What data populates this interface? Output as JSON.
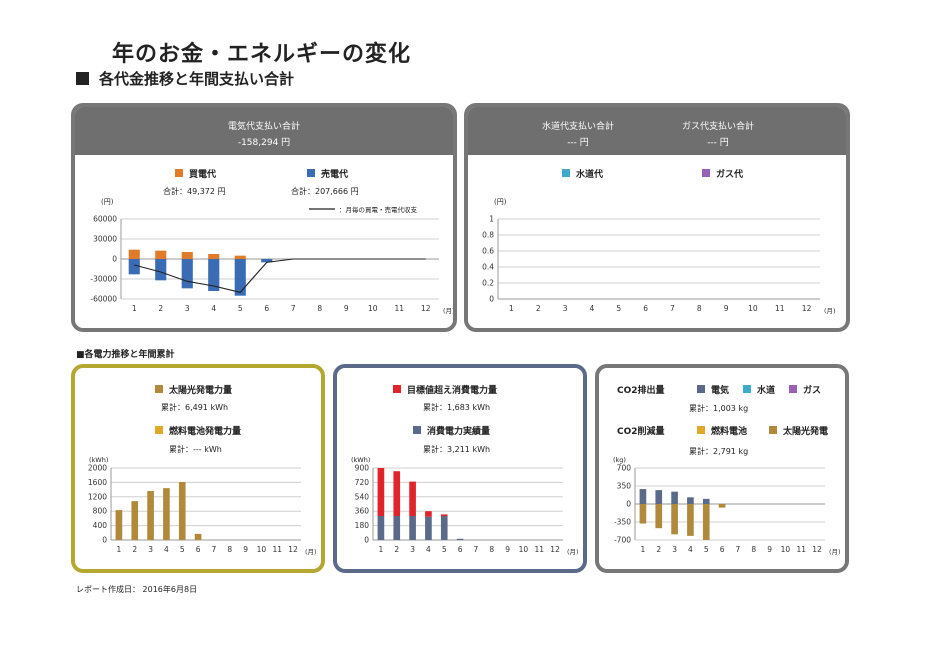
{
  "page": {
    "title": "年のお金・エネルギーの変化",
    "subtitle": "各代金推移と年間支払い合計",
    "section2": "■各電力推移と年間累計",
    "report": "レポート作成日： 2016年6月8日"
  },
  "colors": {
    "buy": "#e07b2a",
    "sell": "#3a6bb5",
    "water": "#3fa9c9",
    "gas": "#9b5fb5",
    "solar": "#b08a3a",
    "fuel": "#e0a92a",
    "target": "#e0242a",
    "actual": "#5c6a8a",
    "frame_gray": "#777777",
    "frame_gold": "#b5a830",
    "frame_blue": "#5c6a8a"
  },
  "electric_panel": {
    "header_label": "電気代支払い合計",
    "header_value": "-158,294 円",
    "legend_buy": "買電代",
    "legend_sell": "売電代",
    "total_buy": "合計：49,372 円",
    "total_sell": "合計：207,666 円",
    "line_legend": "：月毎の買電・売電代収支",
    "y_unit": "(円)",
    "x_unit": "(月)"
  },
  "water_gas_panel": {
    "water_header": "水道代支払い合計",
    "water_value": "--- 円",
    "gas_header": "ガス代支払い合計",
    "gas_value": "--- 円",
    "legend_water": "水道代",
    "legend_gas": "ガス代",
    "y_unit": "(円)",
    "x_unit": "(月)"
  },
  "generation_panel": {
    "legend_solar": "太陽光発電力量",
    "total_solar": "累計：6,491 kWh",
    "legend_fuel": "燃料電池発電力量",
    "total_fuel": "累計：--- kWh",
    "y_unit": "(kWh)",
    "x_unit": "(月)"
  },
  "consumption_panel": {
    "legend_target": "目標値超え消費電力量",
    "total_target": "累計：1,683 kWh",
    "legend_actual": "消費電力実績量",
    "total_actual": "累計：3,211 kWh",
    "y_unit": "(kWh)",
    "x_unit": "(月)"
  },
  "co2_panel": {
    "emission_label": "CO2排出量",
    "legend_elec": "電気",
    "legend_water": "水道",
    "legend_gas": "ガス",
    "total_emission": "累計：1,003 kg",
    "reduction_label": "CO2削減量",
    "legend_fuel": "燃料電池",
    "legend_solar": "太陽光発電",
    "total_reduction": "累計：2,791 kg",
    "y_unit": "(kg)",
    "x_unit": "(月)"
  },
  "chart_data": [
    {
      "id": "electric",
      "type": "bar",
      "categories": [
        "1",
        "2",
        "3",
        "4",
        "5",
        "6",
        "7",
        "8",
        "9",
        "10",
        "11",
        "12"
      ],
      "yticks": [
        "60000",
        "30000",
        "0",
        "-30000",
        "-60000"
      ],
      "ylim": [
        -60000,
        60000
      ],
      "series": [
        {
          "name": "買電代",
          "values": [
            14000,
            12500,
            10500,
            7500,
            5000,
            0,
            0,
            0,
            0,
            0,
            0,
            0
          ]
        },
        {
          "name": "売電代",
          "values": [
            -23000,
            -32000,
            -44000,
            -48000,
            -55000,
            -5000,
            0,
            0,
            0,
            0,
            0,
            0
          ]
        },
        {
          "name": "：月毎の買電・売電代収支",
          "values": [
            -9000,
            -19500,
            -33500,
            -40500,
            -50000,
            -5000,
            0,
            0,
            0,
            0,
            0,
            0
          ]
        }
      ],
      "grid": true
    },
    {
      "id": "water_gas",
      "type": "bar",
      "categories": [
        "1",
        "2",
        "3",
        "4",
        "5",
        "6",
        "7",
        "8",
        "9",
        "10",
        "11",
        "12"
      ],
      "yticks": [
        "1",
        "0.8",
        "0.6",
        "0.4",
        "0.2",
        "0"
      ],
      "ylim": [
        0,
        1
      ],
      "series": [
        {
          "name": "水道代",
          "values": [
            0,
            0,
            0,
            0,
            0,
            0,
            0,
            0,
            0,
            0,
            0,
            0
          ]
        },
        {
          "name": "ガス代",
          "values": [
            0,
            0,
            0,
            0,
            0,
            0,
            0,
            0,
            0,
            0,
            0,
            0
          ]
        }
      ],
      "grid": true
    },
    {
      "id": "generation",
      "type": "bar",
      "categories": [
        "1",
        "2",
        "3",
        "4",
        "5",
        "6",
        "7",
        "8",
        "9",
        "10",
        "11",
        "12"
      ],
      "yticks": [
        "2000",
        "1600",
        "1200",
        "800",
        "400",
        "0"
      ],
      "ylim": [
        0,
        2000
      ],
      "series": [
        {
          "name": "太陽光発電力量",
          "values": [
            830,
            1080,
            1360,
            1440,
            1610,
            170,
            0,
            0,
            0,
            0,
            0,
            0
          ]
        },
        {
          "name": "燃料電池発電力量",
          "values": [
            0,
            0,
            0,
            0,
            0,
            0,
            0,
            0,
            0,
            0,
            0,
            0
          ]
        }
      ],
      "grid": true
    },
    {
      "id": "consumption",
      "type": "bar",
      "stacked": true,
      "categories": [
        "1",
        "2",
        "3",
        "4",
        "5",
        "6",
        "7",
        "8",
        "9",
        "10",
        "11",
        "12"
      ],
      "yticks": [
        "900",
        "720",
        "540",
        "360",
        "180",
        "0"
      ],
      "ylim": [
        0,
        900
      ],
      "series": [
        {
          "name": "消費電力実績量",
          "values": [
            300,
            300,
            300,
            290,
            300,
            15,
            0,
            0,
            0,
            0,
            0,
            0
          ]
        },
        {
          "name": "目標値超え消費電力量",
          "values": [
            600,
            560,
            430,
            70,
            20,
            0,
            0,
            0,
            0,
            0,
            0,
            0
          ]
        }
      ],
      "grid": true
    },
    {
      "id": "co2",
      "type": "bar",
      "categories": [
        "1",
        "2",
        "3",
        "4",
        "5",
        "6",
        "7",
        "8",
        "9",
        "10",
        "11",
        "12"
      ],
      "yticks": [
        "700",
        "350",
        "0",
        "-350",
        "-700"
      ],
      "ylim": [
        -700,
        700
      ],
      "series": [
        {
          "name": "電気",
          "values": [
            290,
            270,
            240,
            130,
            100,
            0,
            0,
            0,
            0,
            0,
            0,
            0
          ]
        },
        {
          "name": "太陽光発電",
          "values": [
            -380,
            -470,
            -590,
            -620,
            -700,
            -70,
            0,
            0,
            0,
            0,
            0,
            0
          ]
        }
      ],
      "grid": true
    }
  ]
}
